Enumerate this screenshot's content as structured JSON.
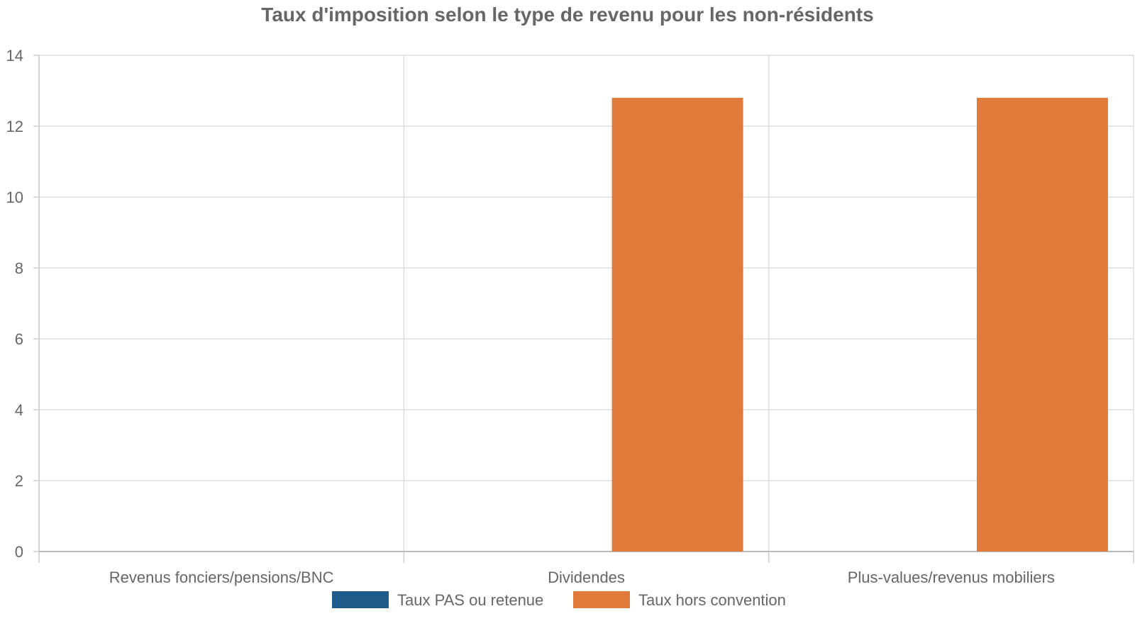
{
  "chart_data": {
    "type": "bar",
    "title": "Taux d'imposition selon le type de revenu pour les non-résidents",
    "categories": [
      "Revenus fonciers/pensions/BNC",
      "Dividendes",
      "Plus-values/revenus mobiliers"
    ],
    "series": [
      {
        "name": "Taux PAS ou retenue",
        "color": "#1f5b8a",
        "values": [
          0,
          0,
          0
        ]
      },
      {
        "name": "Taux hors convention",
        "color": "#e07b3b",
        "values": [
          0,
          12.8,
          12.8
        ]
      }
    ],
    "y_ticks": [
      "0",
      "2",
      "4",
      "6",
      "8",
      "10",
      "12",
      "14"
    ],
    "ylim": [
      0,
      14
    ],
    "grid": true,
    "legend_position": "bottom-center"
  }
}
